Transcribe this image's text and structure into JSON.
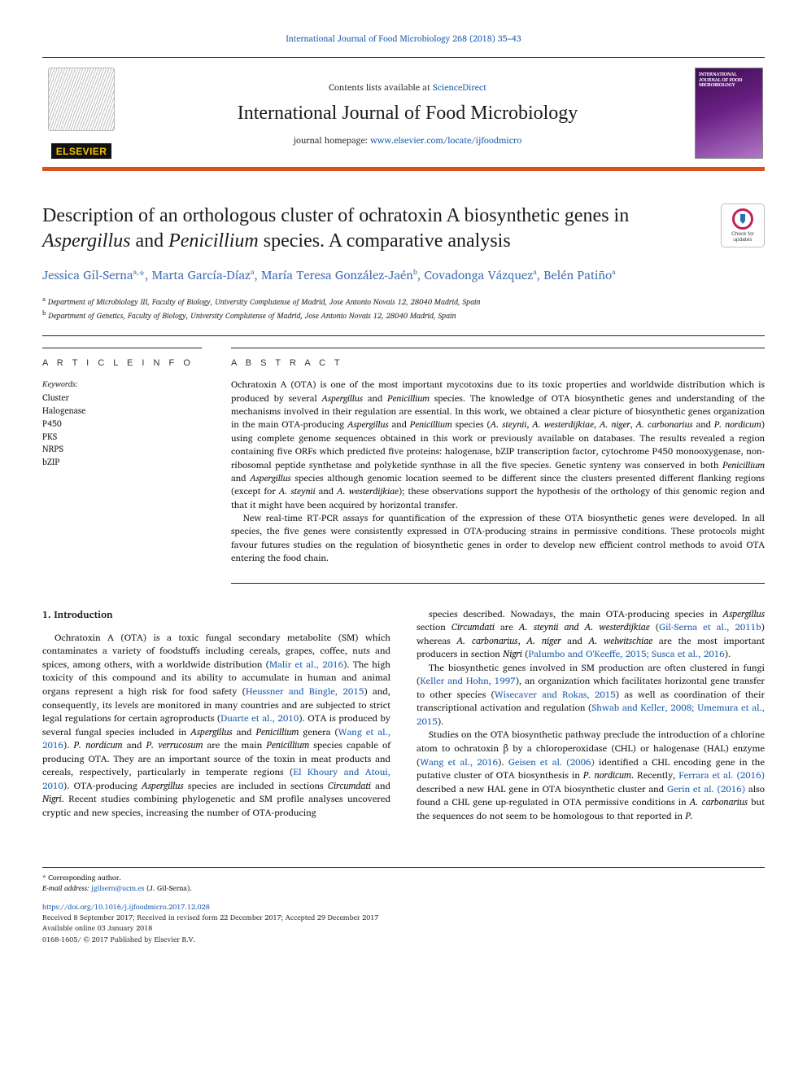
{
  "top_citation": "International Journal of Food Microbiology 268 (2018) 35–43",
  "banner": {
    "elsevier": "ELSEVIER",
    "contents_prefix": "Contents lists available at ",
    "contents_link": "ScienceDirect",
    "journal_title": "International Journal of Food Microbiology",
    "homepage_prefix": "journal homepage: ",
    "homepage_link": "www.elsevier.com/locate/ijfoodmicro",
    "cover_title": "INTERNATIONAL JOURNAL OF FOOD MICROBIOLOGY"
  },
  "check_updates": {
    "line1": "Check for",
    "line2": "updates"
  },
  "article": {
    "title_html": "Description of an orthologous cluster of ochratoxin A biosynthetic genes in <em>Aspergillus</em> and <em>Penicillium</em> species. A comparative analysis",
    "authors_html": "Jessica Gil-Serna<sup>a,</sup>*, Marta García-Díaz<sup>a</sup>, María Teresa González-Jaén<sup>b</sup>, Covadonga Vázquez<sup>a</sup>, Belén Patiño<sup>a</sup>",
    "affiliations": [
      "a Department of Microbiology III, Faculty of Biology, University Complutense of Madrid, Jose Antonio Novais 12, 28040 Madrid, Spain",
      "b Department of Genetics, Faculty of Biology, University Complutense of Madrid, Jose Antonio Novais 12, 28040 Madrid, Spain"
    ]
  },
  "info": {
    "label": "A R T I C L E  I N F O",
    "keywords_label": "Keywords:",
    "keywords": [
      "Cluster",
      "Halogenase",
      "P450",
      "PKS",
      "NRPS",
      "bZIP"
    ]
  },
  "abstract": {
    "label": "A B S T R A C T",
    "paragraphs_html": [
      "Ochratoxin A (OTA) is one of the most important mycotoxins due to its toxic properties and worldwide distribution which is produced by several <em>Aspergillus</em> and <em>Penicillium</em> species. The knowledge of OTA biosynthetic genes and understanding of the mechanisms involved in their regulation are essential. In this work, we obtained a clear picture of biosynthetic genes organization in the main OTA-producing <em>Aspergillus</em> and <em>Penicillium</em> species (<em>A. steynii</em>, <em>A. westerdijkiae</em>, <em>A. niger</em>, <em>A. carbonarius</em> and <em>P. nordicum</em>) using complete genome sequences obtained in this work or previously available on databases. The results revealed a region containing five ORFs which predicted five proteins: halogenase, bZIP transcription factor, cytochrome P450 monooxygenase, non-ribosomal peptide synthetase and polyketide synthase in all the five species. Genetic synteny was conserved in both <em>Penicillium</em> and <em>Aspergillus</em> species although genomic location seemed to be different since the clusters presented different flanking regions (except for <em>A. steynii</em> and <em>A. westerdijkiae</em>); these observations support the hypothesis of the orthology of this genomic region and that it might have been acquired by horizontal transfer.",
      "New real-time RT-PCR assays for quantification of the expression of these OTA biosynthetic genes were developed. In all species, the five genes were consistently expressed in OTA-producing strains in permissive conditions. These protocols might favour futures studies on the regulation of biosynthetic genes in order to develop new efficient control methods to avoid OTA entering the food chain."
    ]
  },
  "body": {
    "heading": "1. Introduction",
    "paragraphs_html": [
      "Ochratoxin A (OTA) is a toxic fungal secondary metabolite (SM) which contaminates a variety of foodstuffs including cereals, grapes, coffee, nuts and spices, among others, with a worldwide distribution (<span class=\"cite\">Malir et al., 2016</span>). The high toxicity of this compound and its ability to accumulate in human and animal organs represent a high risk for food safety (<span class=\"cite\">Heussner and Bingle, 2015</span>) and, consequently, its levels are monitored in many countries and are subjected to strict legal regulations for certain agroproducts (<span class=\"cite\">Duarte et al., 2010</span>). OTA is produced by several fungal species included in <em>Aspergillus</em> and <em>Penicillium</em> genera (<span class=\"cite\">Wang et al., 2016</span>). <em>P. nordicum</em> and <em>P. verrucosum</em> are the main <em>Penicillium</em> species capable of producing OTA. They are an important source of the toxin in meat products and cereals, respectively, particularly in temperate regions (<span class=\"cite\">El Khoury and Atoui, 2010</span>). OTA-producing <em>Aspergillus</em> species are included in sections <em>Circumdati</em> and <em>Nigri</em>. Recent studies combining phylogenetic and SM profile analyses uncovered cryptic and new species, increasing the number of OTA-producing",
      "species described. Nowadays, the main OTA-producing species in <em>Aspergillus</em> section <em>Circumdati</em> are <em>A. steynii and A. westerdijkiae</em> (<span class=\"cite\">Gil-Serna et al., 2011b</span>) whereas <em>A. carbonarius</em>, <em>A. niger</em> and <em>A. welwitschiae</em> are the most important producers in section <em>Nigri</em> (<span class=\"cite\">Palumbo and O'Keeffe, 2015; Susca et al., 2016</span>).",
      "The biosynthetic genes involved in SM production are often clustered in fungi (<span class=\"cite\">Keller and Hohn, 1997</span>), an organization which facilitates horizontal gene transfer to other species (<span class=\"cite\">Wisecaver and Rokas, 2015</span>) as well as coordination of their transcriptional activation and regulation (<span class=\"cite\">Shwab and Keller, 2008; Umemura et al., 2015</span>).",
      "Studies on the OTA biosynthetic pathway preclude the introduction of a chlorine atom to ochratoxin β by a chloroperoxidase (CHL) or halogenase (HAL) enzyme (<span class=\"cite\">Wang et al., 2016</span>). <span class=\"cite\">Geisen et al. (2006)</span> identified a CHL encoding gene in the putative cluster of OTA biosynthesis in <em>P. nordicum</em>. Recently, <span class=\"cite\">Ferrara et al. (2016)</span> described a new HAL gene in OTA biosynthetic cluster and <span class=\"cite\">Gerin et al. (2016)</span> also found a CHL gene up-regulated in OTA permissive conditions in <em>A. carbonarius</em> but the sequences do not seem to be homologous to that reported in <em>P.</em>"
    ]
  },
  "footer": {
    "corr": "* Corresponding author.",
    "email_label": "E-mail address: ",
    "email": "jgilsern@ucm.es",
    "email_person": " (J. Gil-Serna).",
    "doi": "https://doi.org/10.1016/j.ijfoodmicro.2017.12.028",
    "history": "Received 8 September 2017; Received in revised form 22 December 2017; Accepted 29 December 2017",
    "online": "Available online 03 January 2018",
    "copyright": "0168-1605/ © 2017 Published by Elsevier B.V."
  },
  "colors": {
    "accent_orange": "#d9531e",
    "link": "#2060b0",
    "author": "#4670b3",
    "text": "#1a1a1a"
  }
}
